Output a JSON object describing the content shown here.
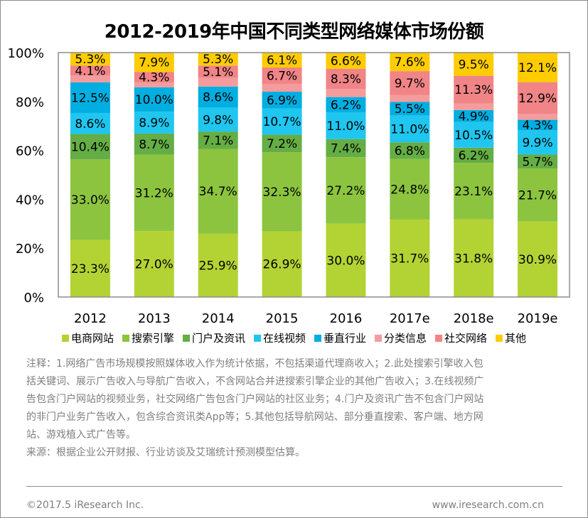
{
  "title": "2012-2019年中国不同类型网络媒体市场份额",
  "chart_data": {
    "type": "bar",
    "stacked": true,
    "title": "2012-2019年中国不同类型网络媒体市场份额",
    "xlabel": "",
    "ylabel": "",
    "ylim": [
      0,
      100
    ],
    "y_ticks": [
      "0%",
      "20%",
      "40%",
      "60%",
      "80%",
      "100%"
    ],
    "grid": false,
    "legend_position": "bottom",
    "categories": [
      "2012",
      "2013",
      "2014",
      "2015",
      "2016",
      "2017e",
      "2018e",
      "2019e"
    ],
    "series": [
      {
        "name": "电商网站",
        "color": "#b3d334",
        "labeled": true,
        "values": [
          23.3,
          27.0,
          25.9,
          26.9,
          30.0,
          31.7,
          31.8,
          30.9
        ]
      },
      {
        "name": "搜索引擎",
        "color": "#8cc43f",
        "labeled": true,
        "values": [
          33.0,
          31.2,
          34.7,
          32.3,
          27.2,
          24.8,
          23.1,
          21.7
        ]
      },
      {
        "name": "门户及资讯",
        "color": "#65ad45",
        "labeled": true,
        "values": [
          10.4,
          8.7,
          7.1,
          7.2,
          7.4,
          6.8,
          6.2,
          5.7
        ]
      },
      {
        "name": "在线视频",
        "color": "#1fc6f0",
        "labeled": true,
        "values": [
          8.6,
          8.9,
          9.8,
          10.7,
          11.0,
          11.0,
          10.5,
          9.9
        ]
      },
      {
        "name": "垂直行业",
        "color": "#00aee1",
        "labeled": true,
        "values": [
          12.5,
          10.0,
          8.6,
          6.9,
          6.2,
          5.5,
          4.9,
          4.3
        ]
      },
      {
        "name": "分类信息",
        "color": "#f49c9d",
        "labeled": false,
        "values": [
          2.8,
          2.0,
          3.5,
          3.2,
          3.3,
          2.9,
          2.7,
          2.5
        ]
      },
      {
        "name": "社交网络",
        "color": "#f08486",
        "labeled": true,
        "values": [
          4.1,
          4.3,
          5.1,
          6.7,
          8.3,
          9.7,
          11.3,
          12.9
        ]
      },
      {
        "name": "其他",
        "color": "#ffcc00",
        "labeled": true,
        "values": [
          5.3,
          7.9,
          5.3,
          6.1,
          6.6,
          7.6,
          9.5,
          12.1
        ]
      }
    ]
  },
  "notes": {
    "lines": [
      "注释：1.网络广告市场规模按照媒体收入作为统计依据，不包括渠道代理商收入；2.此处搜索引擎收入包",
      "括关键词、展示广告收入与导航广告收入，不含网站合并进搜索引擎企业的其他广告收入；3.在线视频广",
      "告包含门户网站的视频业务，社交网络广告包含门户网站的社区业务；4.门户及资讯广告不包含门户网站",
      "的非门户业务广告收入，包含综合资讯类App等；5.其他包括导航网站、部分垂直搜索、客户端、地方网",
      "站、游戏植入式广告等。"
    ],
    "source": "来源：根据企业公开财报、行业访谈及艾瑞统计预测模型估算。"
  },
  "footer": {
    "copyright": "©2017.5 iResearch Inc.",
    "website": "www.iresearch.com.cn"
  }
}
